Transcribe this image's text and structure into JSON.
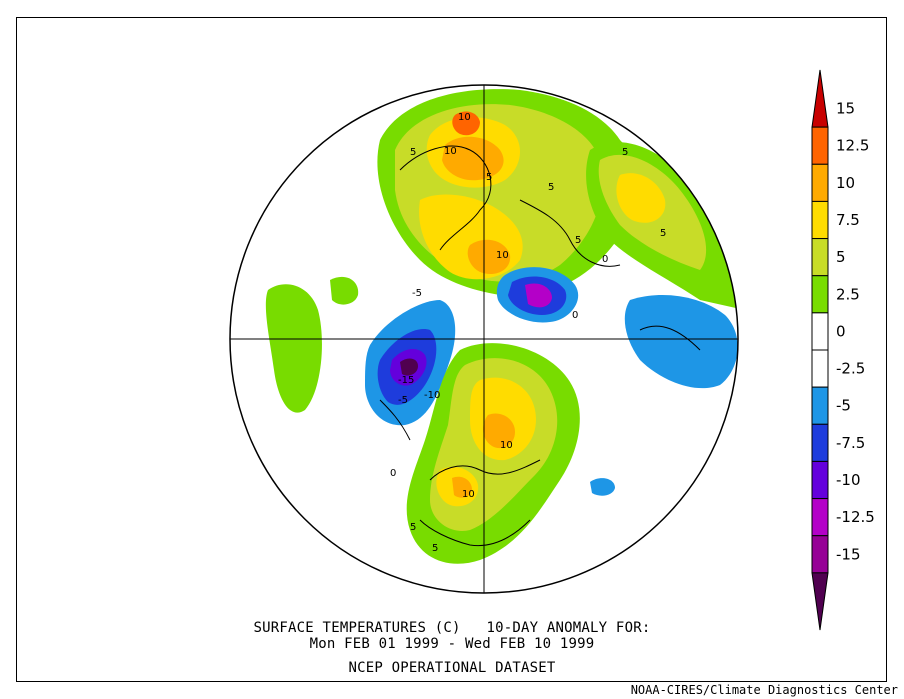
{
  "caption": {
    "line1": "SURFACE TEMPERATURES (C)   10-DAY ANOMALY FOR:",
    "line2": "Mon FEB 01 1999 - Wed FEB 10 1999",
    "line3": "NCEP OPERATIONAL DATASET"
  },
  "credit": "NOAA-CIRES/Climate Diagnostics Center",
  "legend": {
    "labels": [
      "15",
      "12.5",
      "10",
      "7.5",
      "5",
      "2.5",
      "0",
      "-2.5",
      "-5",
      "-7.5",
      "-10",
      "-12.5",
      "-15"
    ],
    "colors": [
      "#c80000",
      "#ff6400",
      "#ffaa00",
      "#ffdc00",
      "#c8dc28",
      "#78dc00",
      "#ffffff",
      "#ffffff",
      "#1e96e6",
      "#1e3cdc",
      "#6400dc",
      "#b400c8",
      "#960096",
      "#500050"
    ]
  },
  "contour_labels": [
    "10",
    "10",
    "5",
    "5",
    "5",
    "5",
    "5",
    "10",
    "0",
    "-5",
    "0",
    "5",
    "-15",
    "-5",
    "-10",
    "10",
    "10",
    "5",
    "0",
    "5"
  ],
  "colors": {
    "pos_2_5": "#78dc00",
    "pos_5": "#c8dc28",
    "pos_7_5": "#ffdc00",
    "pos_10": "#ffaa00",
    "pos_12_5": "#ff6400",
    "neg_2_5": "#1e96e6",
    "neg_5": "#1e3cdc",
    "neg_7_5": "#6400dc",
    "neg_10": "#b400c8",
    "neg_15": "#500050"
  }
}
